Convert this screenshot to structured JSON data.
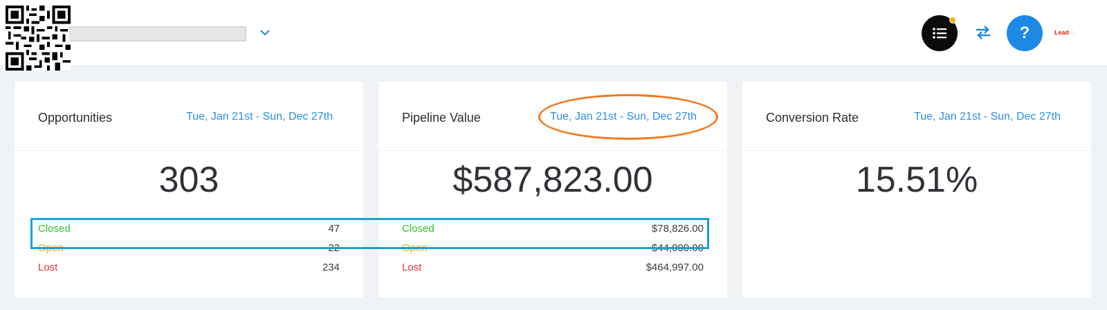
{
  "header": {
    "brand_text": "Lead",
    "brand_tail": "ro"
  },
  "cards": [
    {
      "title": "Opportunities",
      "date_range": "Tue, Jan 21st - Sun, Dec 27th",
      "value": "303",
      "rows": [
        {
          "label": "Closed",
          "value": "47"
        },
        {
          "label": "Open",
          "value": "22"
        },
        {
          "label": "Lost",
          "value": "234"
        }
      ]
    },
    {
      "title": "Pipeline Value",
      "date_range": "Tue, Jan 21st - Sun, Dec 27th",
      "value": "$587,823.00",
      "rows": [
        {
          "label": "Closed",
          "value": "$78,826.00"
        },
        {
          "label": "Open",
          "value": "$44,000.00"
        },
        {
          "label": "Lost",
          "value": "$464,997.00"
        }
      ]
    },
    {
      "title": "Conversion Rate",
      "date_range": "Tue, Jan 21st - Sun, Dec 27th",
      "value": "15.51%"
    }
  ],
  "colors": {
    "accent_blue": "#1e88e5",
    "closed": "#2fc12c",
    "open": "#f2b017",
    "lost": "#e63434",
    "highlight_orange": "#f47a20",
    "highlight_cyan": "#1aa0d8"
  },
  "icons": [
    "qr-code-icon",
    "chevron-down-icon",
    "list-icon",
    "swap-arrows-icon",
    "help-icon"
  ]
}
